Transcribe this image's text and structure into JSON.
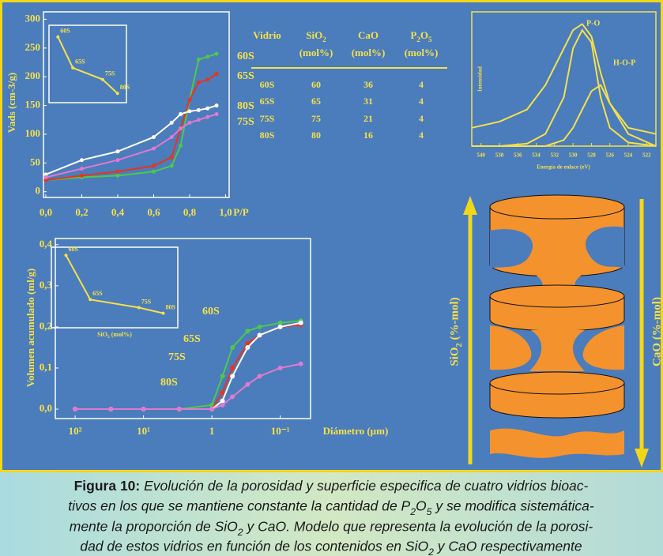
{
  "chart_data": [
    {
      "type": "line",
      "ylabel": "Vads (cm-3/g)",
      "xlabel": "P/P",
      "markers": true,
      "x": [
        0,
        0.2,
        0.4,
        0.6,
        0.7,
        0.75,
        0.8,
        0.85,
        0.9,
        0.95
      ],
      "series": [
        {
          "name": "60S",
          "color": "#4cc94c",
          "values": [
            20,
            25,
            28,
            35,
            45,
            80,
            160,
            230,
            235,
            240
          ]
        },
        {
          "name": "65S",
          "color": "#e8341c",
          "values": [
            20,
            28,
            35,
            45,
            60,
            110,
            160,
            190,
            195,
            205
          ]
        },
        {
          "name": "80S",
          "color": "#ffffff",
          "values": [
            30,
            55,
            70,
            95,
            120,
            135,
            140,
            142,
            145,
            150
          ]
        },
        {
          "name": "75S",
          "color": "#e07ad0",
          "values": [
            25,
            40,
            55,
            75,
            95,
            110,
            120,
            125,
            130,
            135
          ]
        }
      ],
      "xlim": [
        -0.013,
        1.02
      ],
      "ylim": [
        -10,
        313
      ],
      "xticks": [
        {
          "value": 0,
          "label": "0,0"
        },
        {
          "value": 0.2,
          "label": "0,2"
        },
        {
          "value": 0.4,
          "label": "0,4"
        },
        {
          "value": 0.6,
          "label": "0,6"
        },
        {
          "value": 0.8,
          "label": "0,8"
        },
        {
          "value": 1,
          "label": "1,0"
        }
      ],
      "yticks": [
        0,
        50,
        100,
        150,
        200,
        250,
        300
      ]
    },
    {
      "type": "line",
      "markers": true,
      "x": [
        60,
        65,
        75,
        80
      ],
      "point_labels": [
        "60S",
        "65S",
        "75S",
        "80S"
      ],
      "series": [
        {
          "color": "#f5e14a",
          "values": [
            0.85,
            0.45,
            0.3,
            0.12
          ]
        }
      ],
      "xlim": [
        57,
        83
      ],
      "ylim": [
        0,
        1
      ]
    },
    {
      "type": "line",
      "xlabel": "Energía de enlace (eV)",
      "ylabel": "Intensidad",
      "markers": false,
      "x": [
        541,
        538,
        535,
        533,
        531,
        530,
        529,
        528,
        527,
        526,
        524,
        521
      ],
      "series": [
        {
          "color": "#f5e14a",
          "values": [
            0.15,
            0.2,
            0.3,
            0.5,
            0.8,
            0.95,
            1.0,
            0.9,
            0.6,
            0.35,
            0.15,
            0.1
          ]
        },
        {
          "name": "P-O",
          "color": "#f5e14a",
          "values": [
            0,
            0,
            0.02,
            0.1,
            0.4,
            0.8,
            0.95,
            0.85,
            0.4,
            0.15,
            0.03,
            0
          ]
        },
        {
          "name": "H-O-P",
          "color": "#f5e14a",
          "values": [
            0,
            0,
            0,
            0,
            0.05,
            0.15,
            0.3,
            0.45,
            0.5,
            0.35,
            0.1,
            0
          ]
        }
      ],
      "xlim": [
        541,
        521
      ],
      "ylim": [
        0,
        1.1
      ],
      "xticks": [
        540,
        538,
        536,
        534,
        532,
        530,
        528,
        526,
        524,
        522
      ]
    },
    {
      "type": "line",
      "xscale": "log",
      "xlabel": "Diámetro (µm)",
      "ylabel": "Volumen acumulado (ml/g)",
      "markers": true,
      "x": [
        100,
        30,
        10,
        3,
        1,
        0.7,
        0.5,
        0.3,
        0.2,
        0.1,
        0.05
      ],
      "series": [
        {
          "name": "60S",
          "color": "#4cc94c",
          "values": [
            0,
            0,
            0,
            0,
            0.01,
            0.08,
            0.15,
            0.19,
            0.2,
            0.21,
            0.215
          ]
        },
        {
          "name": "65S",
          "color": "#e8341c",
          "values": [
            0,
            0,
            0,
            0,
            0,
            0.04,
            0.1,
            0.16,
            0.18,
            0.2,
            0.205
          ]
        },
        {
          "name": "75S",
          "color": "#ffffff",
          "values": [
            0,
            0,
            0,
            0,
            0,
            0.02,
            0.08,
            0.15,
            0.18,
            0.2,
            0.21
          ]
        },
        {
          "name": "80S",
          "color": "#e07ad0",
          "values": [
            0,
            0,
            0,
            0,
            0,
            0.01,
            0.03,
            0.06,
            0.08,
            0.1,
            0.11
          ]
        }
      ],
      "xlim": [
        195,
        0.036
      ],
      "ylim": [
        -0.023,
        0.415
      ],
      "xticks": [
        {
          "value": 100,
          "label": "10²"
        },
        {
          "value": 10,
          "label": "10¹"
        },
        1,
        {
          "value": 0.1,
          "label": "10⁻¹"
        }
      ],
      "yticks": [
        {
          "value": 0,
          "label": "0,0"
        },
        {
          "value": 0.1,
          "label": "0,1"
        },
        {
          "value": 0.2,
          "label": "0,2"
        },
        {
          "value": 0.3,
          "label": "0,3"
        },
        {
          "value": 0.4,
          "label": "0,4"
        }
      ]
    },
    {
      "type": "line",
      "markers": true,
      "xlabel": "SiO2 (mol%)",
      "x": [
        60,
        65,
        75,
        80
      ],
      "point_labels": [
        "60S",
        "65S",
        "75S",
        "80S"
      ],
      "series": [
        {
          "color": "#f5e14a",
          "values": [
            0.9,
            0.35,
            0.25,
            0.18
          ]
        }
      ],
      "xlim": [
        57,
        83
      ],
      "ylim": [
        0,
        1
      ]
    }
  ],
  "table": {
    "header": [
      "Vidrio",
      "SiO2",
      "CaO",
      "P2O5"
    ],
    "units": [
      "(mol%)",
      "(mol%)",
      "(mol%)"
    ],
    "rows": [
      [
        "60S",
        60,
        36,
        4
      ],
      [
        "65S",
        65,
        31,
        4
      ],
      [
        "75S",
        75,
        21,
        4
      ],
      [
        "80S",
        80,
        16,
        4
      ]
    ]
  },
  "model": {
    "left_axis": "SiO2 (%-mol)",
    "right_axis": "CaO (%-mol)"
  },
  "caption": {
    "label": "Figura 10:",
    "lines": [
      "Evolución de la porosidad y superficie especifica de cuatro vidrios bioac-",
      "tivos en los que se mantiene constante la cantidad de P2O5 y se modifica sistemática-",
      "mente la proporción de SiO2 y CaO. Modelo que representa la evolución de la porosi-",
      "dad de estos vidrios en función de los contenidos en SiO2 y CaO respectivamente"
    ]
  }
}
